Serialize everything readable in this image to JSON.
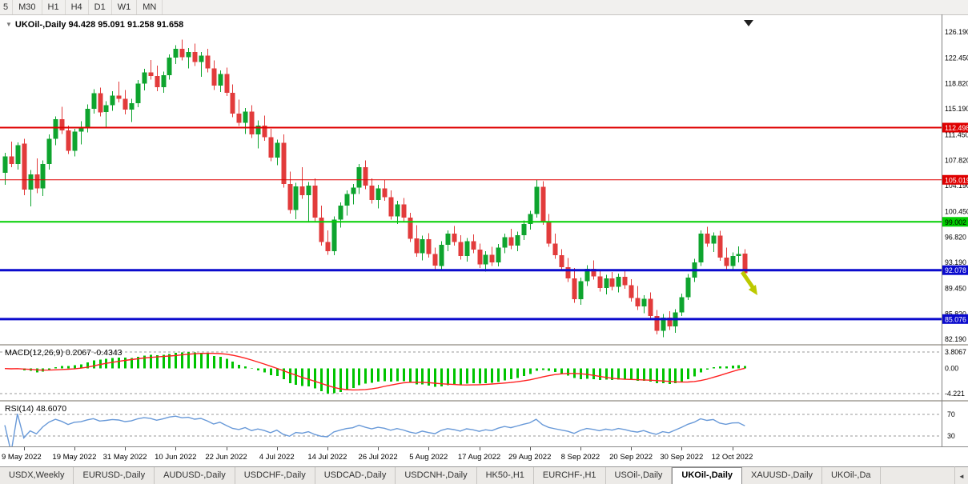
{
  "colors": {
    "up": "#0EA42E",
    "down": "#E23B3B",
    "macd_hist": "#00C400",
    "macd_signal": "#FF2020",
    "rsi_line": "#6899D8",
    "arrow": "#BCC900"
  },
  "toolbar": {
    "timeframes": [
      "5",
      "M30",
      "H1",
      "H4",
      "D1",
      "W1",
      "MN"
    ]
  },
  "chart": {
    "title": "UKOil-,Daily  94.428 95.091 91.258 91.658",
    "menu_icon": "▼",
    "y_axis_labels": [
      "126.190",
      "122.450",
      "118.820",
      "115.190",
      "111.450",
      "107.820",
      "104.190",
      "100.450",
      "96.820",
      "93.190",
      "89.450",
      "85.820",
      "82.190"
    ],
    "x_labels": [
      "9 May 2022",
      "19 May 2022",
      "31 May 2022",
      "10 Jun 2022",
      "22 Jun 2022",
      "4 Jul 2022",
      "14 Jul 2022",
      "26 Jul 2022",
      "5 Aug 2022",
      "17 Aug 2022",
      "29 Aug 2022",
      "8 Sep 2022",
      "20 Sep 2022",
      "30 Sep 2022",
      "12 Oct 2022"
    ],
    "levels": [
      {
        "price": 112.498,
        "label": "112.498",
        "color": "#DF0000",
        "width": 2,
        "text_color": "#FFFFFF"
      },
      {
        "price": 105.019,
        "label": "105.019",
        "color": "#DF0000",
        "width": 1,
        "text_color": "#FFFFFF"
      },
      {
        "price": 99.002,
        "label": "99.002",
        "color": "#00CE00",
        "width": 2,
        "text_color": "#000000"
      },
      {
        "price": 92.078,
        "label": "92.078",
        "color": "#0A0ACD",
        "width": 3,
        "text_color": "#FFFFFF"
      },
      {
        "price": 85.076,
        "label": "85.076",
        "color": "#0A0ACD",
        "width": 3,
        "text_color": "#FFFFFF"
      }
    ],
    "candles": [
      [
        106.0,
        108.9,
        104.3,
        108.4
      ],
      [
        108.4,
        110.5,
        106.8,
        107.3
      ],
      [
        107.3,
        110.4,
        106.5,
        110.0
      ],
      [
        110.2,
        110.9,
        102.8,
        103.6
      ],
      [
        103.6,
        106.4,
        101.2,
        105.8
      ],
      [
        105.8,
        108.1,
        103.1,
        103.8
      ],
      [
        103.8,
        107.8,
        102.7,
        107.3
      ],
      [
        107.3,
        111.5,
        106.5,
        110.9
      ],
      [
        110.9,
        114.1,
        110.0,
        113.7
      ],
      [
        113.7,
        115.5,
        111.6,
        112.1
      ],
      [
        112.1,
        112.8,
        108.7,
        109.2
      ],
      [
        109.2,
        112.3,
        108.4,
        111.9
      ],
      [
        111.9,
        113.4,
        110.1,
        112.5
      ],
      [
        112.5,
        115.8,
        111.8,
        115.2
      ],
      [
        115.2,
        118.0,
        114.5,
        117.4
      ],
      [
        117.4,
        118.2,
        114.1,
        114.7
      ],
      [
        114.7,
        116.3,
        112.6,
        115.7
      ],
      [
        115.7,
        117.7,
        114.9,
        117.1
      ],
      [
        117.1,
        119.1,
        116.1,
        116.6
      ],
      [
        116.6,
        117.9,
        114.4,
        115.1
      ],
      [
        115.1,
        116.6,
        113.3,
        116.0
      ],
      [
        116.0,
        119.3,
        115.4,
        118.8
      ],
      [
        118.8,
        120.9,
        117.8,
        120.4
      ],
      [
        120.4,
        122.2,
        119.4,
        119.9
      ],
      [
        119.9,
        121.4,
        117.7,
        118.3
      ],
      [
        118.3,
        120.5,
        117.5,
        120.0
      ],
      [
        120.0,
        123.0,
        119.4,
        122.5
      ],
      [
        122.5,
        124.3,
        121.6,
        123.8
      ],
      [
        123.8,
        125.1,
        122.1,
        122.6
      ],
      [
        122.6,
        123.9,
        121.0,
        123.3
      ],
      [
        123.3,
        124.5,
        121.3,
        121.9
      ],
      [
        121.9,
        123.3,
        119.8,
        122.8
      ],
      [
        122.8,
        123.8,
        120.4,
        121.0
      ],
      [
        121.0,
        122.1,
        117.9,
        118.5
      ],
      [
        118.5,
        120.7,
        117.6,
        120.2
      ],
      [
        120.2,
        121.1,
        117.0,
        117.5
      ],
      [
        117.5,
        118.7,
        114.0,
        114.5
      ],
      [
        114.5,
        116.5,
        112.7,
        113.2
      ],
      [
        113.2,
        115.3,
        111.6,
        114.8
      ],
      [
        114.8,
        115.7,
        111.0,
        111.5
      ],
      [
        111.5,
        113.5,
        109.5,
        112.8
      ],
      [
        112.8,
        114.2,
        110.6,
        111.1
      ],
      [
        111.1,
        112.3,
        107.7,
        108.2
      ],
      [
        108.2,
        110.8,
        107.1,
        110.3
      ],
      [
        110.3,
        111.5,
        103.9,
        104.4
      ],
      [
        104.4,
        106.2,
        100.2,
        100.7
      ],
      [
        100.7,
        104.6,
        99.4,
        104.1
      ],
      [
        104.1,
        106.8,
        102.3,
        102.8
      ],
      [
        102.8,
        104.7,
        99.0,
        104.2
      ],
      [
        104.2,
        105.2,
        99.1,
        99.6
      ],
      [
        99.6,
        101.3,
        95.6,
        96.1
      ],
      [
        96.1,
        97.8,
        94.3,
        94.8
      ],
      [
        94.8,
        99.8,
        94.2,
        99.3
      ],
      [
        99.3,
        101.8,
        98.2,
        101.3
      ],
      [
        101.3,
        103.5,
        99.9,
        103.0
      ],
      [
        103.0,
        104.4,
        101.5,
        103.9
      ],
      [
        103.9,
        107.3,
        103.0,
        106.8
      ],
      [
        106.8,
        107.8,
        103.7,
        104.2
      ],
      [
        104.2,
        105.2,
        101.6,
        102.1
      ],
      [
        102.1,
        104.3,
        100.9,
        103.8
      ],
      [
        103.8,
        105.0,
        102.0,
        102.5
      ],
      [
        102.5,
        103.5,
        99.3,
        99.8
      ],
      [
        99.8,
        102.0,
        98.7,
        101.5
      ],
      [
        101.5,
        102.4,
        99.1,
        99.6
      ],
      [
        99.6,
        100.3,
        96.1,
        96.6
      ],
      [
        96.6,
        98.5,
        94.0,
        94.5
      ],
      [
        94.5,
        97.0,
        93.5,
        96.5
      ],
      [
        96.5,
        97.4,
        93.9,
        94.4
      ],
      [
        94.4,
        95.3,
        92.2,
        92.7
      ],
      [
        92.7,
        96.2,
        92.1,
        95.7
      ],
      [
        95.7,
        97.8,
        94.8,
        97.3
      ],
      [
        97.3,
        98.4,
        95.6,
        96.1
      ],
      [
        96.1,
        97.1,
        93.6,
        94.1
      ],
      [
        94.1,
        96.7,
        93.3,
        96.2
      ],
      [
        96.2,
        97.2,
        94.5,
        95.0
      ],
      [
        95.0,
        95.9,
        92.4,
        92.9
      ],
      [
        92.9,
        94.8,
        91.9,
        94.3
      ],
      [
        94.3,
        95.4,
        92.7,
        93.2
      ],
      [
        93.2,
        95.8,
        92.6,
        95.3
      ],
      [
        95.3,
        97.3,
        94.5,
        96.8
      ],
      [
        96.8,
        98.0,
        95.1,
        95.6
      ],
      [
        95.6,
        97.6,
        94.8,
        97.1
      ],
      [
        97.1,
        99.2,
        96.4,
        98.7
      ],
      [
        98.7,
        100.6,
        97.9,
        100.1
      ],
      [
        100.1,
        105.0,
        99.6,
        104.0
      ],
      [
        104.0,
        104.8,
        98.6,
        99.1
      ],
      [
        99.1,
        100.1,
        95.4,
        95.9
      ],
      [
        95.9,
        97.3,
        93.7,
        94.2
      ],
      [
        94.2,
        95.1,
        92.0,
        92.5
      ],
      [
        92.5,
        93.8,
        90.4,
        90.9
      ],
      [
        90.9,
        92.4,
        87.4,
        87.9
      ],
      [
        87.9,
        91.0,
        87.1,
        90.5
      ],
      [
        90.5,
        92.8,
        89.8,
        92.3
      ],
      [
        92.3,
        93.5,
        90.7,
        91.2
      ],
      [
        91.2,
        92.2,
        89.0,
        89.5
      ],
      [
        89.5,
        91.4,
        88.6,
        90.9
      ],
      [
        90.9,
        91.8,
        89.2,
        89.7
      ],
      [
        89.7,
        91.6,
        88.9,
        91.1
      ],
      [
        91.1,
        92.0,
        89.4,
        89.9
      ],
      [
        89.9,
        90.8,
        87.6,
        88.1
      ],
      [
        88.1,
        89.8,
        86.4,
        86.9
      ],
      [
        86.9,
        88.5,
        85.9,
        88.0
      ],
      [
        88.0,
        88.9,
        85.0,
        85.5
      ],
      [
        85.5,
        86.4,
        82.9,
        83.4
      ],
      [
        83.4,
        85.8,
        82.5,
        85.3
      ],
      [
        85.3,
        86.2,
        83.5,
        84.0
      ],
      [
        84.0,
        86.5,
        83.1,
        86.0
      ],
      [
        86.0,
        88.7,
        85.5,
        88.2
      ],
      [
        88.2,
        91.5,
        87.8,
        91.0
      ],
      [
        91.0,
        93.7,
        90.4,
        93.2
      ],
      [
        93.2,
        97.8,
        92.7,
        97.3
      ],
      [
        97.3,
        98.3,
        95.4,
        95.9
      ],
      [
        95.9,
        97.5,
        94.7,
        97.0
      ],
      [
        97.0,
        97.7,
        93.4,
        93.9
      ],
      [
        93.9,
        95.3,
        92.2,
        92.7
      ],
      [
        92.7,
        94.6,
        92.0,
        94.1
      ],
      [
        94.1,
        95.5,
        93.2,
        94.4
      ],
      [
        94.428,
        95.091,
        91.258,
        91.658
      ]
    ]
  },
  "macd": {
    "label": "MACD(12,26,9) 0.2067 -0.4343",
    "axis_labels": [
      "3.8067",
      "0.00",
      "-4.221"
    ]
  },
  "rsi": {
    "label": "RSI(14) 48.6070",
    "axis_labels": [
      "70",
      "30"
    ]
  },
  "tabs": {
    "items": [
      "USDX,Weekly",
      "EURUSD-,Daily",
      "AUDUSD-,Daily",
      "USDCHF-,Daily",
      "USDCAD-,Daily",
      "USDCNH-,Daily",
      "HK50-,H1",
      "EURCHF-,H1",
      "USOil-,Daily",
      "UKOil-,Daily",
      "XAUUSD-,Daily",
      "UKOil-,Da"
    ],
    "active_index": 9,
    "scroll_arrow": "◄"
  }
}
